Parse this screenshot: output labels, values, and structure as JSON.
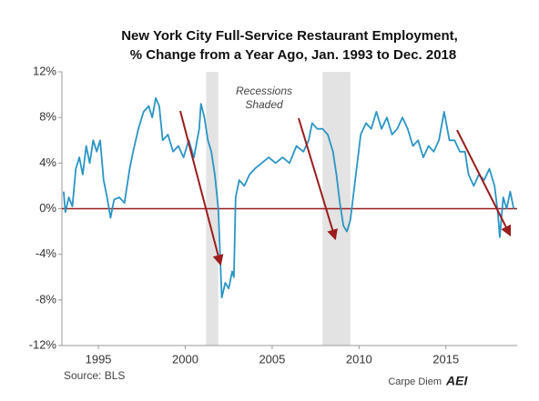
{
  "chart_data": {
    "type": "line",
    "title": [
      "New York City Full-Service Restaurant Employment,",
      "% Change from a Year Ago, Jan. 1993 to Dec. 2018"
    ],
    "annotation": [
      "Recessions",
      "Shaded"
    ],
    "source": "Source: BLS",
    "credit": "Carpe Diem",
    "logo": "AEI",
    "recessions": [
      [
        2001.2,
        2001.9
      ],
      [
        2007.9,
        2009.5
      ]
    ],
    "xlim": [
      1992.9,
      2019.1
    ],
    "xticks": [
      1995,
      2000,
      2005,
      2010,
      2015
    ],
    "ylim": [
      -12,
      12
    ],
    "yticks": [
      {
        "value": -12,
        "label": "-12%"
      },
      {
        "value": -8,
        "label": "-8%"
      },
      {
        "value": -4,
        "label": "-4%"
      },
      {
        "value": 0,
        "label": "0%"
      },
      {
        "value": 4,
        "label": "4%"
      },
      {
        "value": 8,
        "label": "8%"
      },
      {
        "value": 12,
        "label": "12%"
      }
    ],
    "grid": false,
    "zero_line_color": "#9b1c1c",
    "x": [
      1993.0,
      1993.1,
      1993.3,
      1993.5,
      1993.7,
      1993.9,
      1994.1,
      1994.3,
      1994.5,
      1994.7,
      1994.9,
      1995.1,
      1995.3,
      1995.5,
      1995.7,
      1995.9,
      1996.2,
      1996.5,
      1996.8,
      1997.0,
      1997.3,
      1997.6,
      1997.9,
      1998.1,
      1998.3,
      1998.5,
      1998.7,
      1999.0,
      1999.3,
      1999.6,
      1999.9,
      2000.2,
      2000.5,
      2000.8,
      2000.9,
      2001.1,
      2001.3,
      2001.5,
      2001.7,
      2001.9,
      2002.0,
      2002.1,
      2002.3,
      2002.5,
      2002.7,
      2002.8,
      2002.9,
      2003.1,
      2003.4,
      2003.7,
      2004.0,
      2004.4,
      2004.8,
      2005.2,
      2005.6,
      2006.0,
      2006.4,
      2006.8,
      2007.1,
      2007.3,
      2007.6,
      2007.9,
      2008.2,
      2008.5,
      2008.7,
      2008.9,
      2009.1,
      2009.3,
      2009.5,
      2009.7,
      2009.9,
      2010.1,
      2010.4,
      2010.7,
      2011.0,
      2011.3,
      2011.6,
      2011.9,
      2012.2,
      2012.5,
      2012.8,
      2013.1,
      2013.4,
      2013.7,
      2014.0,
      2014.3,
      2014.6,
      2014.9,
      2015.2,
      2015.5,
      2015.8,
      2016.1,
      2016.3,
      2016.6,
      2016.9,
      2017.2,
      2017.5,
      2017.8,
      2018.0,
      2018.1,
      2018.3,
      2018.5,
      2018.7,
      2018.9
    ],
    "series": [
      {
        "name": "NYC full-service restaurant employment",
        "color": "#2a95c5",
        "values": [
          1.5,
          -0.3,
          1,
          0.2,
          3.5,
          4.5,
          3,
          5.5,
          4,
          6,
          5,
          6,
          2.5,
          1,
          -0.8,
          0.8,
          1,
          0.5,
          3.5,
          5,
          7,
          8.5,
          9,
          8,
          9.7,
          9,
          6,
          6.5,
          5,
          5.5,
          4.5,
          6,
          4.5,
          7,
          9.2,
          8,
          6,
          5,
          3,
          0,
          -4,
          -7.8,
          -6.5,
          -7,
          -5.5,
          -6,
          1,
          2.5,
          2,
          3,
          3.5,
          4,
          4.5,
          4,
          4.5,
          4,
          5.5,
          5,
          6,
          7.5,
          7,
          7,
          6.5,
          5,
          3,
          0.5,
          -1.5,
          -2,
          -1,
          1.5,
          4,
          6.5,
          7.5,
          7,
          8.5,
          7,
          8,
          6.5,
          7,
          8,
          7,
          5.5,
          6,
          4.5,
          5.5,
          5,
          6,
          8.5,
          6,
          6,
          5,
          5,
          3,
          2,
          3,
          2.5,
          3.5,
          2,
          -0.5,
          -2.5,
          1,
          0,
          1.5,
          0
        ]
      }
    ]
  }
}
